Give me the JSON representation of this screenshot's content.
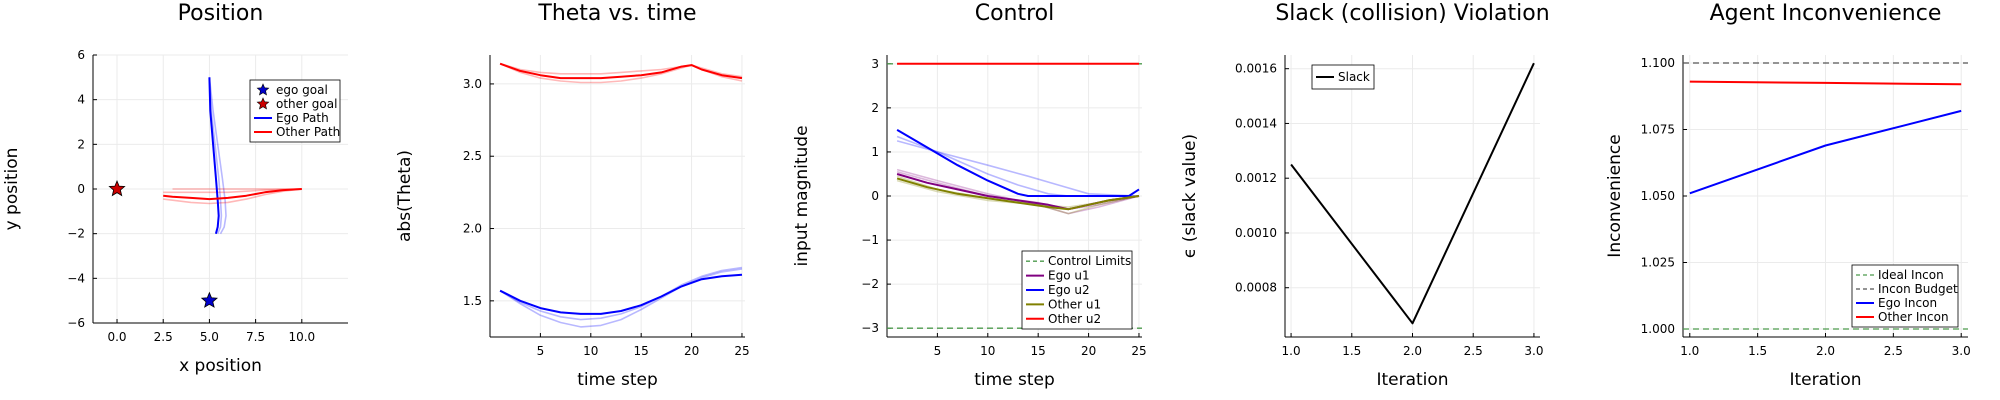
{
  "chart_data": [
    {
      "type": "line",
      "title": "Position",
      "xlabel": "x position",
      "ylabel": "y position",
      "xlim": [
        -1.3,
        12.5
      ],
      "ylim": [
        -6,
        6
      ],
      "xticks": [
        0,
        2.5,
        5,
        7.5,
        10
      ],
      "xtick_labels": [
        "0.0",
        "2.5",
        "5.0",
        "7.5",
        "10.0"
      ],
      "yticks": [
        -6,
        -4,
        -2,
        0,
        2,
        4,
        6
      ],
      "ytick_labels": [
        "−6",
        "−4",
        "−2",
        "0",
        "2",
        "4",
        "6"
      ],
      "grid": true,
      "legend": "top-right",
      "points": [
        {
          "name": "ego goal",
          "x": 5,
          "y": -5,
          "color": "#0000cc",
          "marker": "star"
        },
        {
          "name": "other goal",
          "x": 0,
          "y": 0,
          "color": "#cc0000",
          "marker": "star"
        }
      ],
      "series": [
        {
          "name": "Ego Path",
          "color": "#0000ff",
          "x": [
            5.0,
            5.05,
            5.2,
            5.35,
            5.45,
            5.5,
            5.45,
            5.35
          ],
          "y": [
            5.0,
            3.5,
            2.0,
            0.5,
            -0.5,
            -1.2,
            -1.7,
            -2.0
          ]
        },
        {
          "name": "Other Path",
          "color": "#ff0000",
          "x": [
            10.0,
            9.0,
            8.0,
            7.0,
            6.0,
            5.0,
            4.0,
            3.0,
            2.5
          ],
          "y": [
            0.0,
            -0.05,
            -0.15,
            -0.3,
            -0.4,
            -0.45,
            -0.4,
            -0.35,
            -0.3
          ]
        }
      ],
      "faint_series": [
        {
          "color": "#0000ff",
          "x": [
            5.0,
            5.2,
            5.45,
            5.7,
            5.85,
            5.9,
            5.8,
            5.6
          ],
          "y": [
            5.0,
            3.5,
            2.0,
            0.5,
            -0.5,
            -1.2,
            -1.7,
            -2.0
          ]
        },
        {
          "color": "#0000ff",
          "x": [
            5.0,
            5.1,
            5.3,
            5.5,
            5.6,
            5.65,
            5.6,
            5.45
          ],
          "y": [
            5.0,
            3.5,
            2.0,
            0.5,
            -0.5,
            -1.2,
            -1.7,
            -2.0
          ]
        },
        {
          "color": "#ff0000",
          "x": [
            10.0,
            9.0,
            8.0,
            7.0,
            6.0,
            5.0,
            4.0,
            3.0,
            2.5
          ],
          "y": [
            0.0,
            -0.1,
            -0.25,
            -0.45,
            -0.6,
            -0.65,
            -0.6,
            -0.5,
            -0.45
          ]
        },
        {
          "color": "#ff0000",
          "x": [
            10.0,
            9.0,
            8.0,
            7.0,
            6.0,
            5.0,
            4.0,
            3.0,
            2.5
          ],
          "y": [
            0.0,
            -0.02,
            -0.05,
            -0.1,
            -0.15,
            -0.15,
            -0.15,
            -0.15,
            -0.15
          ]
        },
        {
          "color": "#ff0000",
          "x": [
            10.0,
            8.0,
            6.0,
            4.0,
            3.0
          ],
          "y": [
            0.0,
            0.0,
            0.0,
            0.0,
            0.0
          ]
        }
      ]
    },
    {
      "type": "line",
      "title": "Theta vs. time",
      "xlabel": "time step",
      "ylabel": "abs(Theta)",
      "xlim": [
        0,
        25.3
      ],
      "ylim": [
        1.25,
        3.2
      ],
      "xticks": [
        5,
        10,
        15,
        20,
        25
      ],
      "xtick_labels": [
        "5",
        "10",
        "15",
        "20",
        "25"
      ],
      "yticks": [
        1.5,
        2.0,
        2.5,
        3.0
      ],
      "ytick_labels": [
        "1.5",
        "2.0",
        "2.5",
        "3.0"
      ],
      "grid": true,
      "series": [
        {
          "color": "#0000ff",
          "x": [
            1,
            3,
            5,
            7,
            9,
            11,
            13,
            15,
            17,
            19,
            21,
            23,
            25
          ],
          "y": [
            1.57,
            1.5,
            1.45,
            1.42,
            1.41,
            1.41,
            1.43,
            1.47,
            1.53,
            1.6,
            1.65,
            1.67,
            1.68
          ]
        },
        {
          "color": "#ff0000",
          "x": [
            1,
            3,
            5,
            7,
            9,
            11,
            13,
            15,
            17,
            19,
            20,
            21,
            23,
            25
          ],
          "y": [
            3.14,
            3.09,
            3.06,
            3.04,
            3.04,
            3.04,
            3.05,
            3.06,
            3.08,
            3.12,
            3.13,
            3.1,
            3.06,
            3.04
          ]
        }
      ],
      "faint_series": [
        {
          "color": "#0000ff",
          "x": [
            1,
            3,
            5,
            7,
            9,
            11,
            13,
            15,
            17,
            19,
            21,
            23,
            25
          ],
          "y": [
            1.57,
            1.48,
            1.4,
            1.35,
            1.32,
            1.33,
            1.37,
            1.44,
            1.52,
            1.6,
            1.66,
            1.7,
            1.72
          ]
        },
        {
          "color": "#0000ff",
          "x": [
            1,
            3,
            5,
            7,
            9,
            11,
            13,
            15,
            17,
            19,
            21,
            23,
            25
          ],
          "y": [
            1.57,
            1.49,
            1.43,
            1.39,
            1.37,
            1.38,
            1.41,
            1.46,
            1.53,
            1.61,
            1.67,
            1.71,
            1.73
          ]
        },
        {
          "color": "#ff0000",
          "x": [
            1,
            3,
            5,
            7,
            9,
            11,
            13,
            15,
            17,
            19,
            20,
            21,
            23,
            25
          ],
          "y": [
            3.14,
            3.08,
            3.04,
            3.02,
            3.01,
            3.01,
            3.02,
            3.04,
            3.07,
            3.11,
            3.13,
            3.1,
            3.05,
            3.02
          ]
        },
        {
          "color": "#ff0000",
          "x": [
            1,
            3,
            5,
            7,
            9,
            11,
            13,
            15,
            17,
            19,
            20,
            21,
            23,
            25
          ],
          "y": [
            3.14,
            3.1,
            3.08,
            3.07,
            3.07,
            3.07,
            3.08,
            3.09,
            3.1,
            3.12,
            3.13,
            3.11,
            3.07,
            3.05
          ]
        }
      ]
    },
    {
      "type": "line",
      "title": "Control",
      "xlabel": "time step",
      "ylabel": "input magnitude",
      "xlim": [
        0,
        25.3
      ],
      "ylim": [
        -3.2,
        3.2
      ],
      "xticks": [
        5,
        10,
        15,
        20,
        25
      ],
      "xtick_labels": [
        "5",
        "10",
        "15",
        "20",
        "25"
      ],
      "yticks": [
        -3,
        -2,
        -1,
        0,
        1,
        2,
        3
      ],
      "ytick_labels": [
        "−3",
        "−2",
        "−1",
        "0",
        "1",
        "2",
        "3"
      ],
      "grid": true,
      "legend": "bottom-right",
      "series": [
        {
          "name": "Control Limits",
          "color": "#4c9a4c",
          "dash": true,
          "x": [
            0,
            25.3
          ],
          "y": [
            -3,
            -3
          ]
        },
        {
          "name": "Ego u1",
          "color": "#800080",
          "x": [
            1,
            4,
            7,
            10,
            13,
            16,
            18,
            20,
            22,
            25
          ],
          "y": [
            0.5,
            0.3,
            0.15,
            0.0,
            -0.1,
            -0.2,
            -0.3,
            -0.2,
            -0.1,
            0.0
          ]
        },
        {
          "name": "Ego u2",
          "color": "#0000ff",
          "x": [
            1,
            4,
            7,
            10,
            13,
            14,
            16,
            20,
            24,
            25
          ],
          "y": [
            1.5,
            1.1,
            0.7,
            0.35,
            0.05,
            0.0,
            0.0,
            0.0,
            0.0,
            0.15
          ]
        },
        {
          "name": "Other u1",
          "color": "#808000",
          "x": [
            1,
            4,
            7,
            10,
            13,
            16,
            18,
            20,
            22,
            25
          ],
          "y": [
            0.4,
            0.2,
            0.05,
            -0.05,
            -0.15,
            -0.25,
            -0.3,
            -0.2,
            -0.1,
            0.0
          ]
        },
        {
          "name": "Other u2",
          "color": "#ff0000",
          "x": [
            1,
            25
          ],
          "y": [
            3,
            3
          ]
        }
      ],
      "extra_series": [
        {
          "color": "#4c9a4c",
          "dash": true,
          "x": [
            0,
            25.3
          ],
          "y": [
            3,
            3
          ]
        }
      ],
      "faint_series": [
        {
          "color": "#0000ff",
          "x": [
            1,
            5,
            10,
            13,
            16,
            18,
            20,
            25
          ],
          "y": [
            1.35,
            1.0,
            0.5,
            0.25,
            0.05,
            0.0,
            0.0,
            0.0
          ]
        },
        {
          "color": "#0000ff",
          "x": [
            1,
            5,
            10,
            14,
            17,
            20,
            25
          ],
          "y": [
            1.25,
            1.0,
            0.7,
            0.45,
            0.25,
            0.05,
            0.0
          ]
        },
        {
          "color": "#800080",
          "x": [
            1,
            5,
            10,
            15,
            18,
            21,
            25
          ],
          "y": [
            0.6,
            0.35,
            0.05,
            -0.2,
            -0.4,
            -0.25,
            0.0
          ]
        },
        {
          "color": "#800080",
          "x": [
            1,
            5,
            10,
            15,
            18,
            21,
            25
          ],
          "y": [
            0.55,
            0.3,
            0.0,
            -0.15,
            -0.3,
            -0.2,
            0.0
          ]
        },
        {
          "color": "#808000",
          "x": [
            1,
            5,
            10,
            15,
            18,
            21,
            25
          ],
          "y": [
            0.45,
            0.15,
            -0.05,
            -0.2,
            -0.4,
            -0.2,
            0.0
          ]
        },
        {
          "color": "#808000",
          "x": [
            1,
            5,
            10,
            15,
            18,
            21,
            25
          ],
          "y": [
            0.35,
            0.1,
            -0.1,
            -0.2,
            -0.25,
            -0.15,
            0.0
          ]
        }
      ]
    },
    {
      "type": "line",
      "title": "Slack (collision) Violation",
      "xlabel": "Iteration",
      "ylabel": "ϵ (slack value)",
      "xlim": [
        0.95,
        3.05
      ],
      "ylim": [
        0.00062,
        0.00165
      ],
      "xticks": [
        1.0,
        1.5,
        2.0,
        2.5,
        3.0
      ],
      "xtick_labels": [
        "1.0",
        "1.5",
        "2.0",
        "2.5",
        "3.0"
      ],
      "yticks": [
        0.0008,
        0.001,
        0.0012,
        0.0014,
        0.0016
      ],
      "ytick_labels": [
        "0.0008",
        "0.0010",
        "0.0012",
        "0.0014",
        "0.0016"
      ],
      "grid": true,
      "legend": "top-left",
      "series": [
        {
          "name": "Slack",
          "color": "#000000",
          "x": [
            1,
            2,
            3
          ],
          "y": [
            0.00125,
            0.00067,
            0.00162
          ]
        }
      ]
    },
    {
      "type": "line",
      "title": "Agent Inconvenience",
      "xlabel": "Iteration",
      "ylabel": "Inconvenience",
      "xlim": [
        0.95,
        3.05
      ],
      "ylim": [
        0.997,
        1.103
      ],
      "xticks": [
        1.0,
        1.5,
        2.0,
        2.5,
        3.0
      ],
      "xtick_labels": [
        "1.0",
        "1.5",
        "2.0",
        "2.5",
        "3.0"
      ],
      "yticks": [
        1.0,
        1.025,
        1.05,
        1.075,
        1.1
      ],
      "ytick_labels": [
        "1.000",
        "1.025",
        "1.050",
        "1.075",
        "1.100"
      ],
      "grid": true,
      "legend": "bottom-right",
      "series": [
        {
          "name": "Ideal Incon",
          "color": "#4c9a4c",
          "dash": true,
          "x": [
            0.95,
            3.05
          ],
          "y": [
            1.0,
            1.0
          ]
        },
        {
          "name": "Incon Budget",
          "color": "#555555",
          "dash": true,
          "x": [
            0.95,
            3.05
          ],
          "y": [
            1.1,
            1.1
          ]
        },
        {
          "name": "Ego Incon",
          "color": "#0000ff",
          "x": [
            1,
            2,
            3
          ],
          "y": [
            1.051,
            1.069,
            1.082
          ]
        },
        {
          "name": "Other Incon",
          "color": "#ff0000",
          "x": [
            1,
            2,
            3
          ],
          "y": [
            1.093,
            1.0925,
            1.092
          ]
        }
      ]
    }
  ]
}
